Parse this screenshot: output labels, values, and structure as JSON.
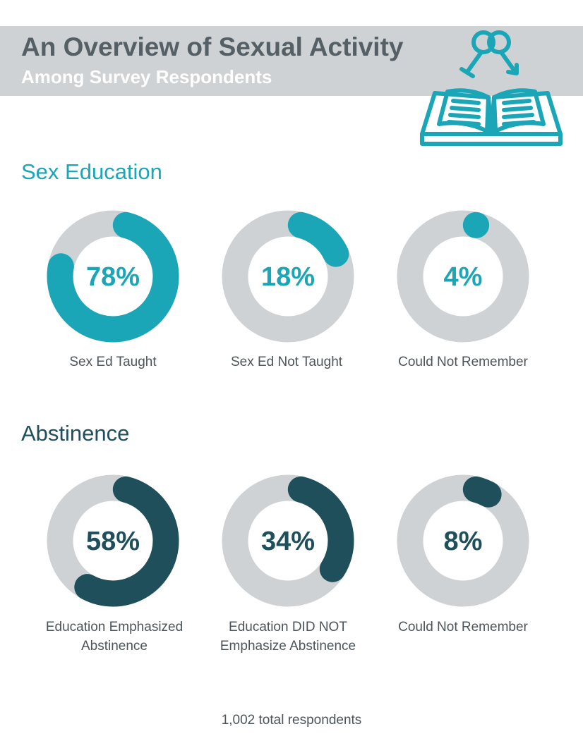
{
  "header": {
    "title": "An Overview of Sexual Activity",
    "subtitle": "Among Survey Respondents"
  },
  "colors": {
    "header_band": "#cfd2d4",
    "track": "#cfd2d4",
    "sex_education": "#1aa6b7",
    "abstinence": "#1e4f5b",
    "label_text": "#4c5559"
  },
  "icons": {
    "logo": "open-book-with-gender-symbols-icon"
  },
  "chart_data": [
    {
      "type": "pie",
      "title": "Sex Education",
      "categories": [
        "Sex Ed Taught",
        "Sex Ed Not Taught",
        "Could Not Remember"
      ],
      "values": [
        78,
        18,
        4
      ],
      "value_labels": [
        "78%",
        "18%",
        "4%"
      ],
      "unit": "%"
    },
    {
      "type": "pie",
      "title": "Abstinence",
      "categories": [
        "Education Emphasized Abstinence",
        "Education DID NOT Emphasize Abstinence",
        "Could Not Remember"
      ],
      "values": [
        58,
        34,
        8
      ],
      "value_labels": [
        "58%",
        "34%",
        "8%"
      ],
      "unit": "%"
    }
  ],
  "footnote": "1,002 total respondents"
}
